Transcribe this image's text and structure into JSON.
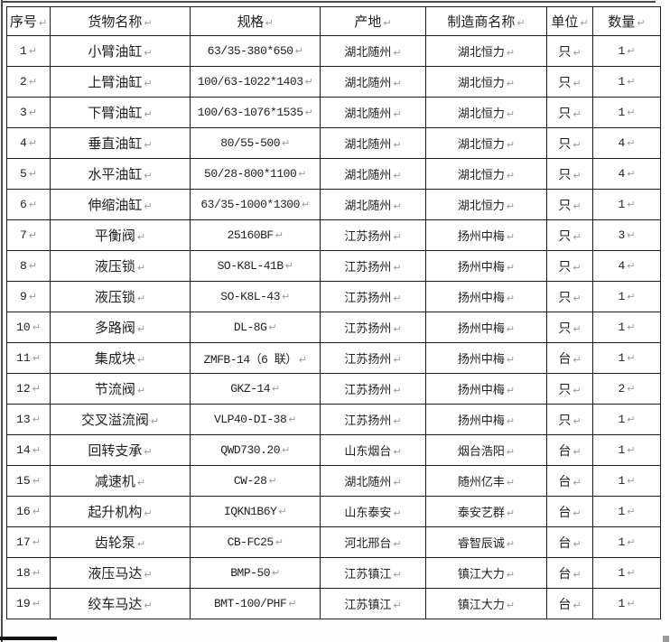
{
  "colors": {
    "table_border": "#1c1c1c",
    "text": "#1f1f1f",
    "formatting_mark": "#9a9a9a"
  },
  "formatting_mark_glyph": "↵",
  "table": {
    "columns": [
      {
        "key": "no",
        "label": "序号"
      },
      {
        "key": "name",
        "label": "货物名称"
      },
      {
        "key": "spec",
        "label": "规格"
      },
      {
        "key": "orig",
        "label": "产地"
      },
      {
        "key": "mfr",
        "label": "制造商名称"
      },
      {
        "key": "unit",
        "label": "单位"
      },
      {
        "key": "qty",
        "label": "数量"
      }
    ],
    "rows": [
      {
        "no": "1",
        "name": "小臂油缸",
        "spec": "63/35-380*650",
        "orig": "湖北随州",
        "mfr": "湖北恒力",
        "unit": "只",
        "qty": "1"
      },
      {
        "no": "2",
        "name": "上臂油缸",
        "spec": "100/63-1022*1403",
        "orig": "湖北随州",
        "mfr": "湖北恒力",
        "unit": "只",
        "qty": "1"
      },
      {
        "no": "3",
        "name": "下臂油缸",
        "spec": "100/63-1076*1535",
        "orig": "湖北随州",
        "mfr": "湖北恒力",
        "unit": "只",
        "qty": "1"
      },
      {
        "no": "4",
        "name": "垂直油缸",
        "spec": "80/55-500",
        "orig": "湖北随州",
        "mfr": "湖北恒力",
        "unit": "只",
        "qty": "4"
      },
      {
        "no": "5",
        "name": "水平油缸",
        "spec": "50/28-800*1100",
        "orig": "湖北随州",
        "mfr": "湖北恒力",
        "unit": "只",
        "qty": "4"
      },
      {
        "no": "6",
        "name": "伸缩油缸",
        "spec": "63/35-1000*1300",
        "orig": "湖北随州",
        "mfr": "湖北恒力",
        "unit": "只",
        "qty": "1"
      },
      {
        "no": "7",
        "name": "平衡阀",
        "spec": "25160BF",
        "orig": "江苏扬州",
        "mfr": "扬州中梅",
        "unit": "只",
        "qty": "3"
      },
      {
        "no": "8",
        "name": "液压锁",
        "spec": "SO-K8L-41B",
        "orig": "江苏扬州",
        "mfr": "扬州中梅",
        "unit": "只",
        "qty": "4"
      },
      {
        "no": "9",
        "name": "液压锁",
        "spec": "SO-K8L-43",
        "orig": "江苏扬州",
        "mfr": "扬州中梅",
        "unit": "只",
        "qty": "1"
      },
      {
        "no": "10",
        "name": "多路阀",
        "spec": "DL-8G",
        "orig": "江苏扬州",
        "mfr": "扬州中梅",
        "unit": "只",
        "qty": "1"
      },
      {
        "no": "11",
        "name": "集成块",
        "spec": "ZMFB-14（6 联）",
        "orig": "江苏扬州",
        "mfr": "扬州中梅",
        "unit": "台",
        "qty": "1"
      },
      {
        "no": "12",
        "name": "节流阀",
        "spec": "GKZ-14",
        "orig": "江苏扬州",
        "mfr": "扬州中梅",
        "unit": "只",
        "qty": "2"
      },
      {
        "no": "13",
        "name": "交叉溢流阀",
        "spec": "VLP40-DI-38",
        "orig": "江苏扬州",
        "mfr": "扬州中梅",
        "unit": "只",
        "qty": "1"
      },
      {
        "no": "14",
        "name": "回转支承",
        "spec": "QWD730.20",
        "orig": "山东烟台",
        "mfr": "烟台浩阳",
        "unit": "台",
        "qty": "1"
      },
      {
        "no": "15",
        "name": "减速机",
        "spec": "CW-28",
        "orig": "湖北随州",
        "mfr": "随州亿丰",
        "unit": "台",
        "qty": "1"
      },
      {
        "no": "16",
        "name": "起升机构",
        "spec": "IQKN1B6Y",
        "orig": "山东泰安",
        "mfr": "泰安艺群",
        "unit": "台",
        "qty": "1"
      },
      {
        "no": "17",
        "name": "齿轮泵",
        "spec": "CB-FC25",
        "orig": "河北邢台",
        "mfr": "睿智辰诚",
        "unit": "台",
        "qty": "1"
      },
      {
        "no": "18",
        "name": "液压马达",
        "spec": "BMP-50",
        "orig": "江苏镇江",
        "mfr": "镇江大力",
        "unit": "台",
        "qty": "1"
      },
      {
        "no": "19",
        "name": "绞车马达",
        "spec": "BMT-100/PHF",
        "orig": "江苏镇江",
        "mfr": "镇江大力",
        "unit": "台",
        "qty": "1"
      }
    ]
  }
}
